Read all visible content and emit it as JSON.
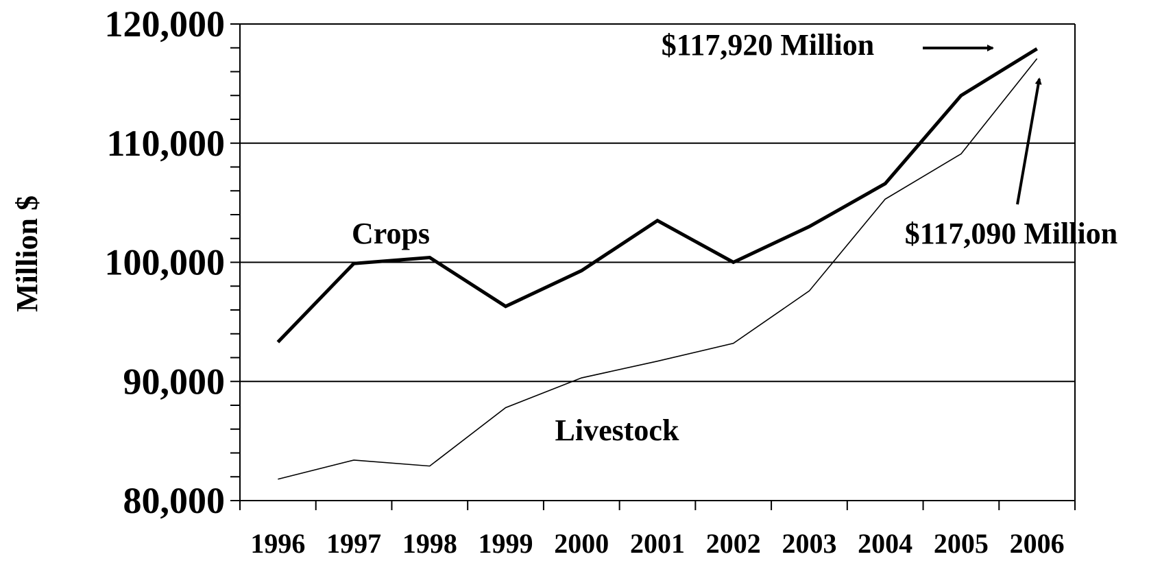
{
  "chart_data": {
    "type": "line",
    "title": "",
    "xlabel": "",
    "ylabel": "Million $",
    "ylim": [
      80000,
      120000
    ],
    "yticks": [
      "80,000",
      "90,000",
      "100,000",
      "110,000",
      "120,000"
    ],
    "ytick_values": [
      80000,
      90000,
      100000,
      110000,
      120000
    ],
    "ytick_minor_step": 2000,
    "grid": "horizontal major",
    "categories": [
      "1996",
      "1997",
      "1998",
      "1999",
      "2000",
      "2001",
      "2002",
      "2003",
      "2004",
      "2005",
      "2006"
    ],
    "series": [
      {
        "name": "Crops",
        "style": "thick",
        "values": [
          93300,
          99900,
          100400,
          96300,
          99300,
          103500,
          100000,
          103000,
          106600,
          114000,
          117920
        ]
      },
      {
        "name": "Livestock",
        "style": "thin",
        "values": [
          81800,
          83400,
          82900,
          87800,
          90300,
          91700,
          93200,
          97600,
          105300,
          109100,
          117090
        ]
      }
    ],
    "annotations": [
      {
        "text": "$117,920 Million",
        "series": 0,
        "point": 10
      },
      {
        "text": "$117,090 Million",
        "series": 1,
        "point": 10
      }
    ],
    "colors": {
      "line": "#000000",
      "grid": "#000000",
      "background": "#ffffff"
    }
  }
}
